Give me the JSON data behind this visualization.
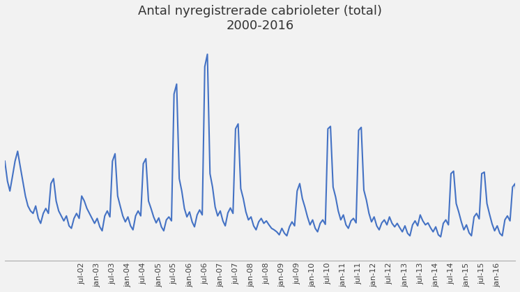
{
  "title_line1": "Antal nyregistrerade cabrioleter (total)",
  "title_line2": "2000-2016",
  "line_color": "#4472C4",
  "line_width": 1.5,
  "background_color": "#f2f2f2",
  "plot_bg_color": "#f2f2f2",
  "grid_color": "#ffffff",
  "title_fontsize": 13,
  "tick_fontsize": 8,
  "values": [
    200,
    160,
    140,
    170,
    200,
    220,
    190,
    160,
    130,
    110,
    100,
    95,
    110,
    85,
    75,
    95,
    105,
    95,
    155,
    165,
    120,
    100,
    90,
    80,
    90,
    70,
    65,
    85,
    95,
    85,
    130,
    120,
    105,
    95,
    85,
    75,
    85,
    68,
    60,
    90,
    100,
    88,
    200,
    215,
    130,
    110,
    90,
    78,
    88,
    70,
    62,
    90,
    100,
    90,
    195,
    205,
    120,
    105,
    88,
    76,
    86,
    68,
    60,
    82,
    88,
    80,
    335,
    355,
    165,
    140,
    105,
    88,
    98,
    78,
    68,
    92,
    102,
    92,
    390,
    415,
    175,
    148,
    108,
    90,
    100,
    80,
    70,
    96,
    106,
    95,
    265,
    275,
    145,
    125,
    98,
    82,
    88,
    70,
    62,
    78,
    85,
    75,
    80,
    72,
    65,
    62,
    58,
    52,
    65,
    55,
    50,
    68,
    78,
    70,
    140,
    155,
    125,
    108,
    88,
    72,
    82,
    65,
    58,
    75,
    82,
    73,
    265,
    270,
    148,
    128,
    100,
    82,
    92,
    72,
    65,
    80,
    85,
    76,
    262,
    268,
    142,
    122,
    95,
    78,
    88,
    70,
    62,
    76,
    82,
    72,
    88,
    75,
    68,
    75,
    66,
    58,
    70,
    55,
    50,
    72,
    80,
    70,
    92,
    80,
    72,
    76,
    66,
    58,
    68,
    52,
    48,
    75,
    82,
    72,
    175,
    180,
    115,
    98,
    78,
    62,
    72,
    56,
    50,
    88,
    95,
    84,
    175,
    178,
    115,
    94,
    74,
    60,
    70,
    55,
    50,
    82,
    90,
    80,
    148,
    155,
    105,
    88,
    68,
    65,
    75,
    62
  ],
  "ylim": [
    0,
    450
  ],
  "tick_labels": [
    "jul-02",
    "jan-03",
    "jul-03",
    "jan-04",
    "jul-04",
    "jan-05",
    "jul-05",
    "jan-06",
    "jul-06",
    "jan-07",
    "jul-07",
    "jan-08",
    "jul-08",
    "jan-09",
    "jul-09",
    "jan-10",
    "jul-10",
    "jan-11",
    "jul-11",
    "jan-12",
    "jul-12",
    "jan-13",
    "jul-13",
    "jan-14",
    "jul-14",
    "jan-15",
    "jul-15",
    "jan-16"
  ]
}
